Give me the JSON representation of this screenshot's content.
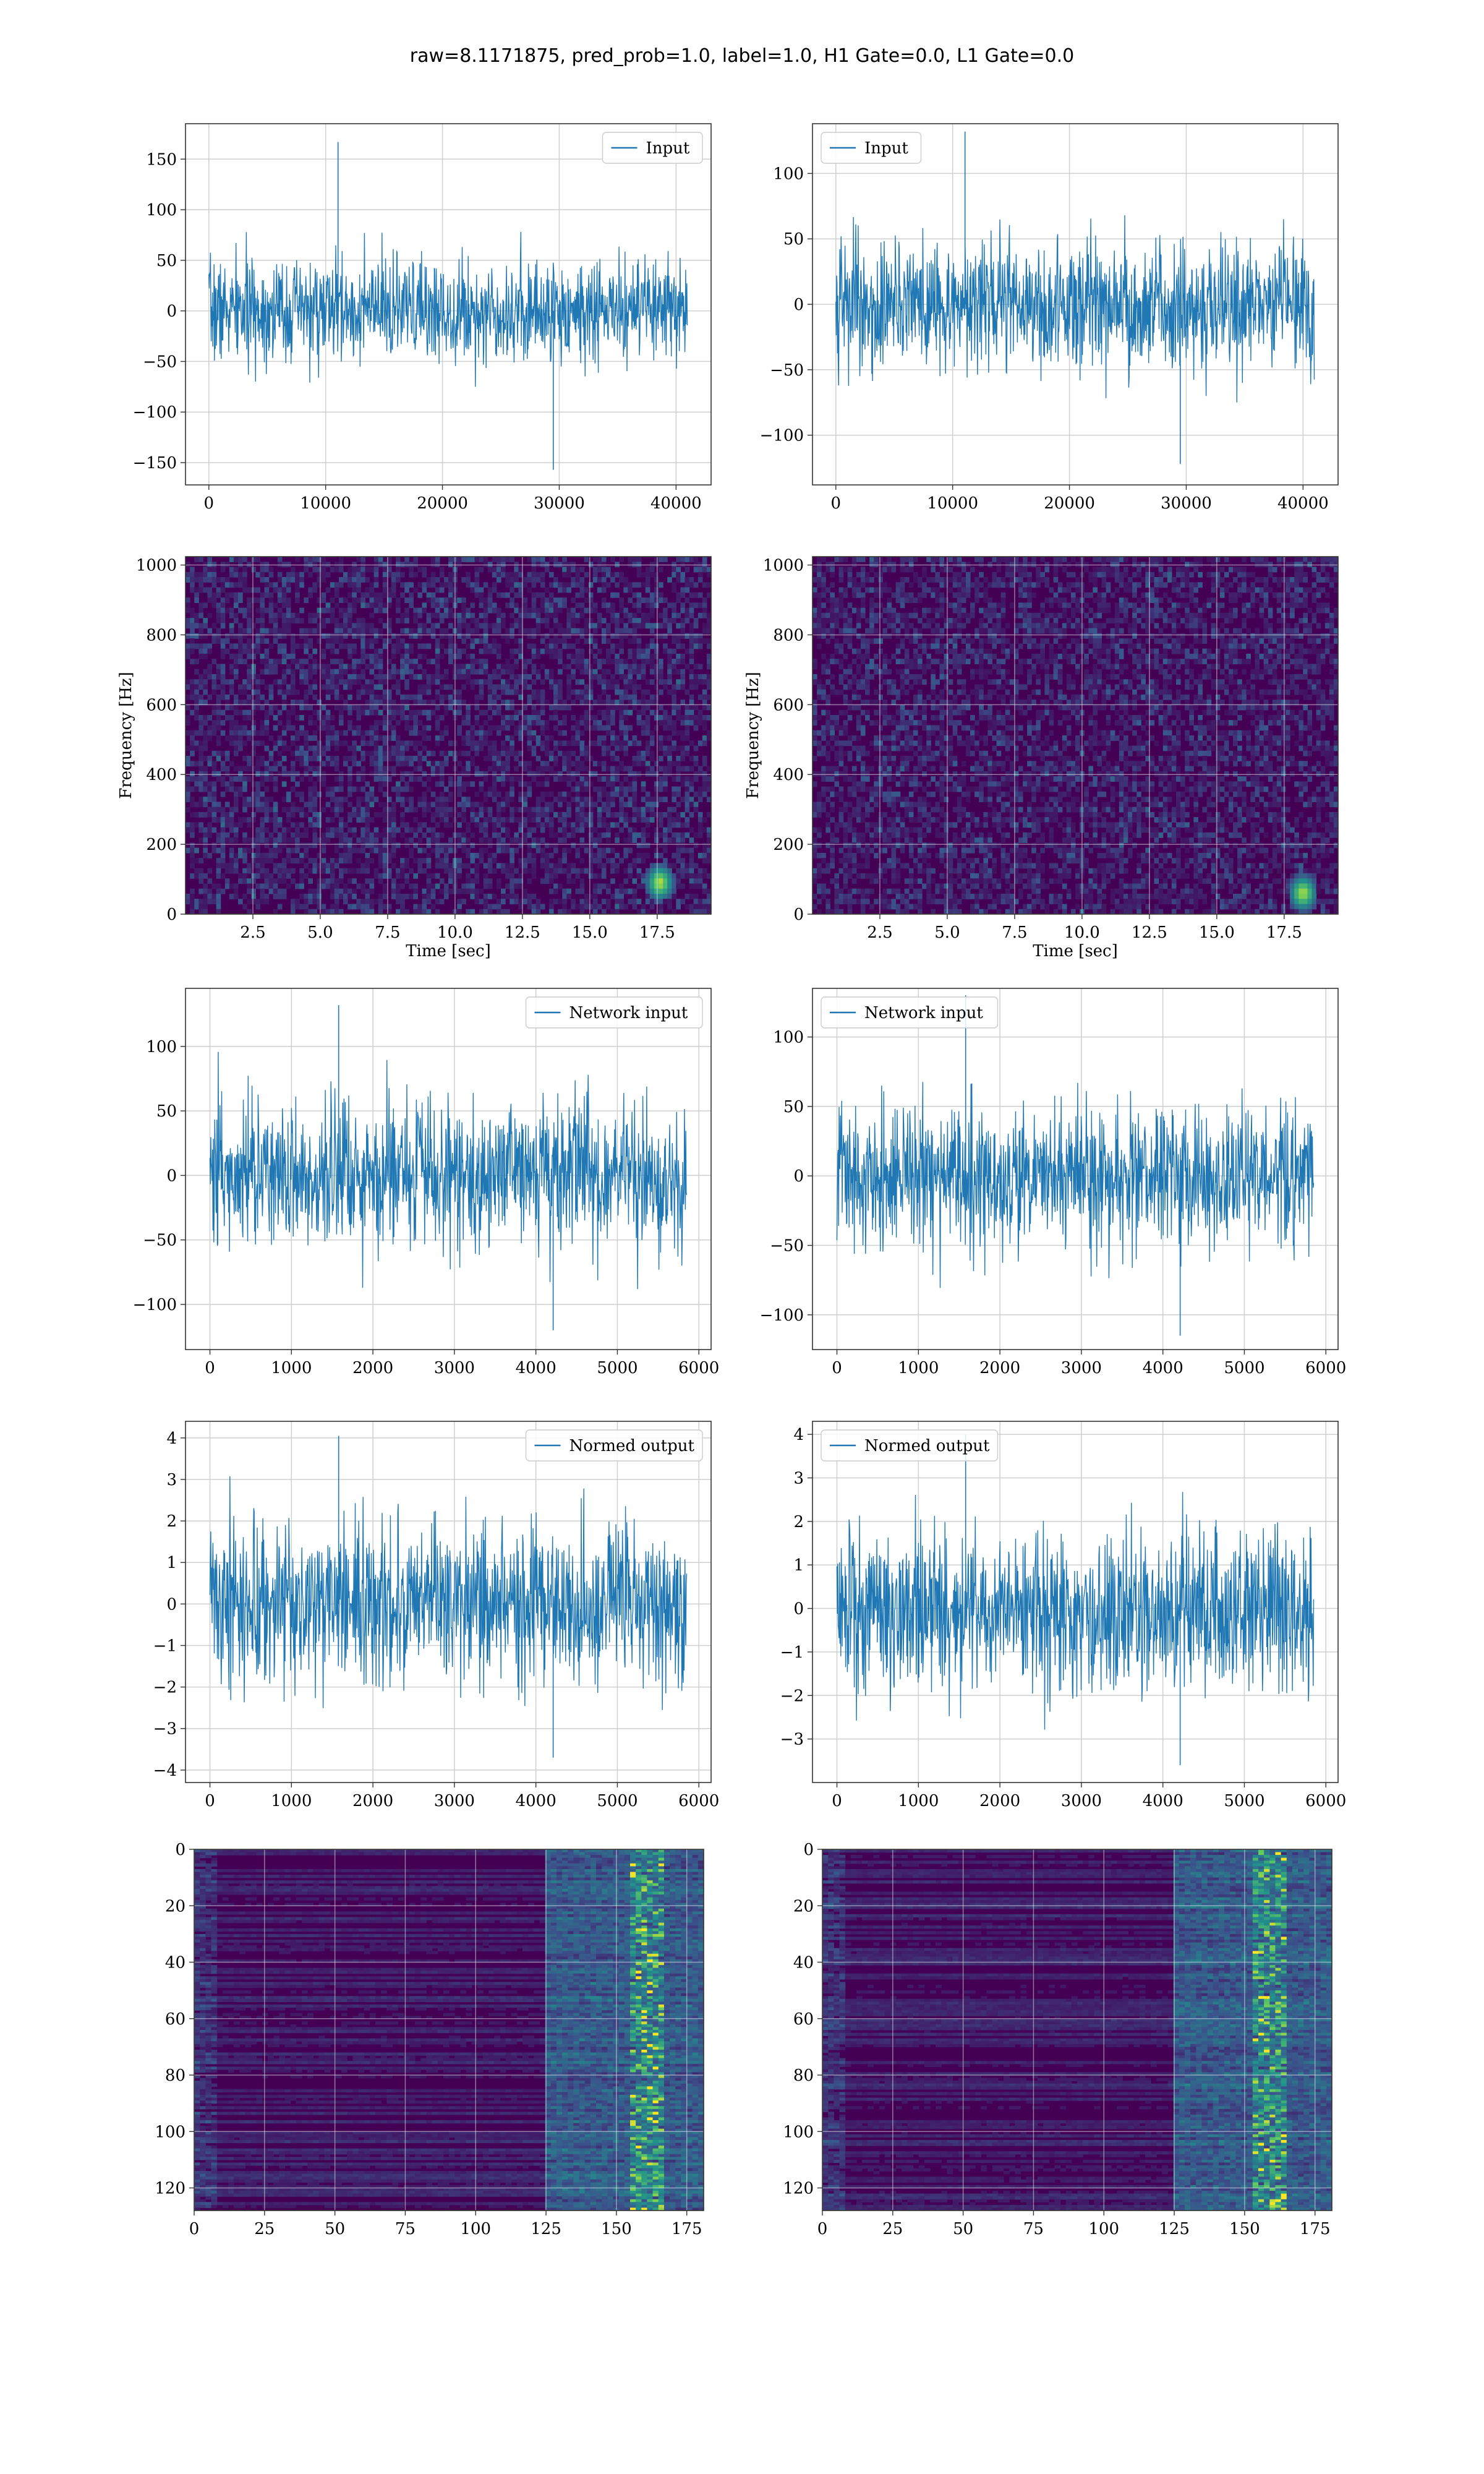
{
  "figure": {
    "title": "raw=8.1171875, pred_prob=1.0, label=1.0, H1 Gate=0.0, L1 Gate=0.0"
  },
  "colors": {
    "line": "#1f77b4",
    "grid": "#cfcfcf",
    "axes": "#333333",
    "viridis_low": "#440154",
    "viridis_high": "#fde725"
  },
  "chart_data": [
    {
      "id": "r1c1",
      "type": "line",
      "title": "",
      "xlabel": "",
      "ylabel": "",
      "xlim": [
        -2000,
        43000
      ],
      "ylim": [
        -172,
        185
      ],
      "xticks": [
        0,
        10000,
        20000,
        30000,
        40000
      ],
      "yticks": [
        -150,
        -100,
        -50,
        0,
        50,
        100,
        150
      ],
      "legend": {
        "label": "Input",
        "placement": "top-right"
      },
      "grid": true,
      "signal": {
        "x_start": 0,
        "x_end": 40960,
        "samples": 1200,
        "std": 25,
        "max": 167,
        "min": -157
      }
    },
    {
      "id": "r1c2",
      "type": "line",
      "title": "",
      "xlabel": "",
      "ylabel": "",
      "xlim": [
        -2000,
        43000
      ],
      "ylim": [
        -138,
        138
      ],
      "xticks": [
        0,
        10000,
        20000,
        30000,
        40000
      ],
      "yticks": [
        -100,
        -50,
        0,
        50,
        100
      ],
      "legend": {
        "label": "Input",
        "placement": "top-left"
      },
      "grid": true,
      "signal": {
        "x_start": 0,
        "x_end": 40960,
        "samples": 1200,
        "std": 24,
        "max": 132,
        "min": -122
      }
    },
    {
      "id": "r2c1",
      "type": "heatmap",
      "title": "",
      "xlabel": "Time [sec]",
      "ylabel": "Frequency [Hz]",
      "xlim": [
        0,
        19.5
      ],
      "ylim": [
        0,
        1024
      ],
      "xticks": [
        2.5,
        5.0,
        7.5,
        10.0,
        12.5,
        15.0,
        17.5
      ],
      "yticks": [
        0,
        200,
        400,
        600,
        800,
        1000
      ],
      "grid": true,
      "spectrogram": {
        "cols": 120,
        "rows": 70,
        "noise": 0.22,
        "hotspot": {
          "time": 17.6,
          "freq": 90
        }
      }
    },
    {
      "id": "r2c2",
      "type": "heatmap",
      "title": "",
      "xlabel": "Time [sec]",
      "ylabel": "Frequency [Hz]",
      "xlim": [
        0,
        19.5
      ],
      "ylim": [
        0,
        1024
      ],
      "xticks": [
        2.5,
        5.0,
        7.5,
        10.0,
        12.5,
        15.0,
        17.5
      ],
      "yticks": [
        0,
        200,
        400,
        600,
        800,
        1000
      ],
      "grid": true,
      "spectrogram": {
        "cols": 120,
        "rows": 70,
        "noise": 0.2,
        "hotspot": {
          "time": 18.2,
          "freq": 60
        }
      }
    },
    {
      "id": "r3c1",
      "type": "line",
      "title": "",
      "xlabel": "",
      "ylabel": "",
      "xlim": [
        -300,
        6150
      ],
      "ylim": [
        -135,
        145
      ],
      "xticks": [
        0,
        1000,
        2000,
        3000,
        4000,
        5000,
        6000
      ],
      "yticks": [
        -100,
        -50,
        0,
        50,
        100
      ],
      "legend": {
        "label": "Network input",
        "placement": "top-right"
      },
      "grid": true,
      "signal": {
        "x_start": 0,
        "x_end": 5850,
        "samples": 1100,
        "std": 28,
        "max": 132,
        "min": -120
      }
    },
    {
      "id": "r3c2",
      "type": "line",
      "title": "",
      "xlabel": "",
      "ylabel": "",
      "xlim": [
        -300,
        6150
      ],
      "ylim": [
        -125,
        135
      ],
      "xticks": [
        0,
        1000,
        2000,
        3000,
        4000,
        5000,
        6000
      ],
      "yticks": [
        -100,
        -50,
        0,
        50,
        100
      ],
      "legend": {
        "label": "Network input",
        "placement": "top-left"
      },
      "grid": true,
      "signal": {
        "x_start": 0,
        "x_end": 5850,
        "samples": 1100,
        "std": 25,
        "max": 130,
        "min": -115
      }
    },
    {
      "id": "r4c1",
      "type": "line",
      "title": "",
      "xlabel": "",
      "ylabel": "",
      "xlim": [
        -300,
        6150
      ],
      "ylim": [
        -4.3,
        4.4
      ],
      "xticks": [
        0,
        1000,
        2000,
        3000,
        4000,
        5000,
        6000
      ],
      "yticks": [
        -4,
        -3,
        -2,
        -1,
        0,
        1,
        2,
        3,
        4
      ],
      "legend": {
        "label": "Normed output",
        "placement": "top-right"
      },
      "grid": true,
      "signal": {
        "x_start": 0,
        "x_end": 5850,
        "samples": 1100,
        "std": 0.95,
        "max": 4.05,
        "min": -3.7
      }
    },
    {
      "id": "r4c2",
      "type": "line",
      "title": "",
      "xlabel": "",
      "ylabel": "",
      "xlim": [
        -300,
        6150
      ],
      "ylim": [
        -4.0,
        4.3
      ],
      "xticks": [
        0,
        1000,
        2000,
        3000,
        4000,
        5000,
        6000
      ],
      "yticks": [
        -3,
        -2,
        -1,
        0,
        1,
        2,
        3,
        4
      ],
      "legend": {
        "label": "Normed output",
        "placement": "top-left"
      },
      "grid": true,
      "signal": {
        "x_start": 0,
        "x_end": 5850,
        "samples": 1100,
        "std": 0.9,
        "max": 4.0,
        "min": -3.6
      }
    },
    {
      "id": "r5c1",
      "type": "heatmap",
      "title": "",
      "xlabel": "",
      "ylabel": "",
      "xlim": [
        0,
        181
      ],
      "ylim": [
        128,
        0
      ],
      "xticks": [
        0,
        25,
        50,
        75,
        100,
        125,
        150,
        175
      ],
      "yticks": [
        0,
        20,
        40,
        60,
        80,
        100,
        120
      ],
      "grid": true,
      "feature_map": {
        "cols": 181,
        "rows": 128,
        "band_start": 125,
        "hot_col": 160
      }
    },
    {
      "id": "r5c2",
      "type": "heatmap",
      "title": "",
      "xlabel": "",
      "ylabel": "",
      "xlim": [
        0,
        181
      ],
      "ylim": [
        128,
        0
      ],
      "xticks": [
        0,
        25,
        50,
        75,
        100,
        125,
        150,
        175
      ],
      "yticks": [
        0,
        20,
        40,
        60,
        80,
        100,
        120
      ],
      "grid": true,
      "feature_map": {
        "cols": 181,
        "rows": 128,
        "band_start": 125,
        "hot_col": 158
      }
    }
  ]
}
